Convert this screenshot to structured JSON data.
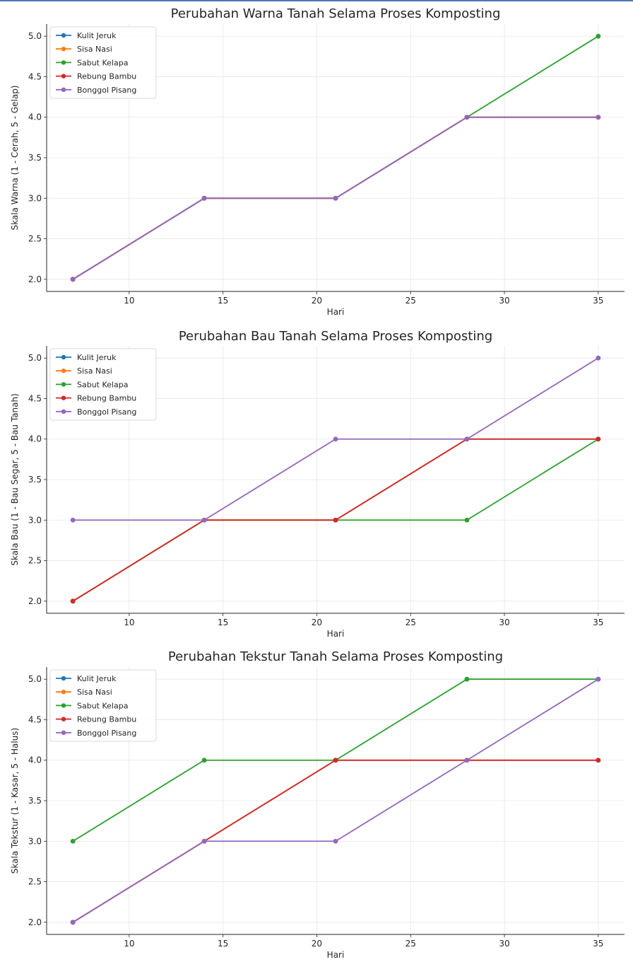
{
  "colors": {
    "Kulit Jeruk": "#1f77b4",
    "Sisa Nasi": "#ff7f0e",
    "Sabut Kelapa": "#2ca02c",
    "Rebung Bambu": "#d62728",
    "Bonggol Pisang": "#9467bd"
  },
  "chart_data": [
    {
      "type": "line",
      "title": "Perubahan Warna Tanah Selama Proses Komposting",
      "xlabel": "Hari",
      "ylabel": "Skala Warna (1 - Cerah, 5 - Gelap)",
      "x": [
        7,
        14,
        21,
        28,
        35
      ],
      "xticks": [
        10,
        15,
        20,
        25,
        30,
        35
      ],
      "yticks": [
        2.0,
        2.5,
        3.0,
        3.5,
        4.0,
        4.5,
        5.0
      ],
      "xlim": [
        5.6,
        36.4
      ],
      "ylim": [
        1.85,
        5.15
      ],
      "grid": true,
      "legend_position": "upper left",
      "series": [
        {
          "name": "Kulit Jeruk",
          "values": [
            2,
            3,
            3,
            4,
            4
          ]
        },
        {
          "name": "Sisa Nasi",
          "values": [
            2,
            3,
            3,
            4,
            4
          ]
        },
        {
          "name": "Sabut Kelapa",
          "values": [
            2,
            3,
            3,
            4,
            5
          ]
        },
        {
          "name": "Rebung Bambu",
          "values": [
            2,
            3,
            3,
            4,
            4
          ]
        },
        {
          "name": "Bonggol Pisang",
          "values": [
            2,
            3,
            3,
            4,
            4
          ]
        }
      ]
    },
    {
      "type": "line",
      "title": "Perubahan Bau Tanah Selama Proses Komposting",
      "xlabel": "Hari",
      "ylabel": "Skala Bau (1 - Bau Segar, 5 - Bau Tanah)",
      "x": [
        7,
        14,
        21,
        28,
        35
      ],
      "xticks": [
        10,
        15,
        20,
        25,
        30,
        35
      ],
      "yticks": [
        2.0,
        2.5,
        3.0,
        3.5,
        4.0,
        4.5,
        5.0
      ],
      "xlim": [
        5.6,
        36.4
      ],
      "ylim": [
        1.85,
        5.15
      ],
      "grid": true,
      "legend_position": "upper left",
      "series": [
        {
          "name": "Kulit Jeruk",
          "values": [
            2,
            3,
            3,
            4,
            4
          ]
        },
        {
          "name": "Sisa Nasi",
          "values": [
            2,
            3,
            3,
            4,
            4
          ]
        },
        {
          "name": "Sabut Kelapa",
          "values": [
            2,
            3,
            3,
            3,
            4
          ]
        },
        {
          "name": "Rebung Bambu",
          "values": [
            2,
            3,
            3,
            4,
            4
          ]
        },
        {
          "name": "Bonggol Pisang",
          "values": [
            3,
            3,
            4,
            4,
            5
          ]
        }
      ]
    },
    {
      "type": "line",
      "title": "Perubahan Tekstur Tanah Selama Proses Komposting",
      "xlabel": "Hari",
      "ylabel": "Skala Tekstur (1 - Kasar, 5 - Halus)",
      "x": [
        7,
        14,
        21,
        28,
        35
      ],
      "xticks": [
        10,
        15,
        20,
        25,
        30,
        35
      ],
      "yticks": [
        2.0,
        2.5,
        3.0,
        3.5,
        4.0,
        4.5,
        5.0
      ],
      "xlim": [
        5.6,
        36.4
      ],
      "ylim": [
        1.85,
        5.15
      ],
      "grid": true,
      "legend_position": "upper left",
      "series": [
        {
          "name": "Kulit Jeruk",
          "values": [
            2,
            3,
            4,
            4,
            4
          ]
        },
        {
          "name": "Sisa Nasi",
          "values": [
            2,
            3,
            4,
            4,
            4
          ]
        },
        {
          "name": "Sabut Kelapa",
          "values": [
            3,
            4,
            4,
            5,
            5
          ]
        },
        {
          "name": "Rebung Bambu",
          "values": [
            2,
            3,
            4,
            4,
            4
          ]
        },
        {
          "name": "Bonggol Pisang",
          "values": [
            2,
            3,
            3,
            4,
            5
          ]
        }
      ]
    }
  ]
}
